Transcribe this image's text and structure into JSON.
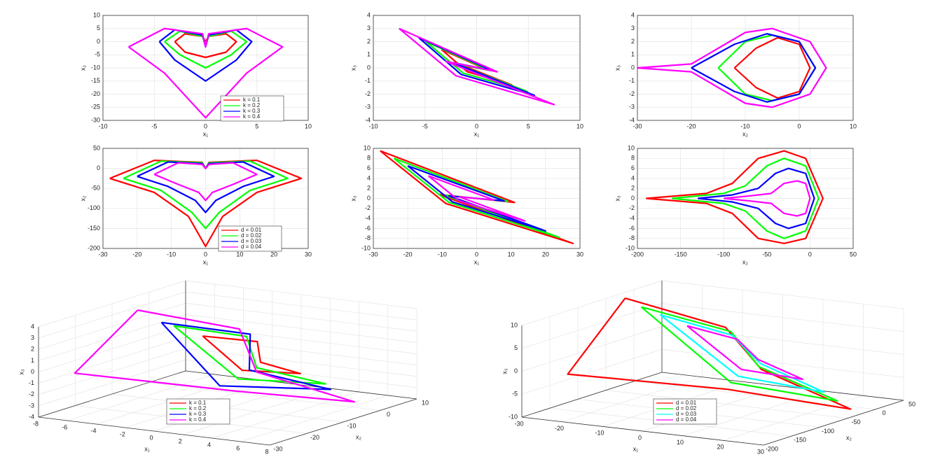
{
  "chart_data": [
    {
      "type": "line",
      "xlabel": "x₁",
      "ylabel": "x₂",
      "xlim": [
        -10,
        10
      ],
      "ylim": [
        -30,
        10
      ],
      "xticks": [
        -10,
        -5,
        0,
        5,
        10
      ],
      "yticks": [
        -30,
        -25,
        -20,
        -15,
        -10,
        -5,
        0,
        5,
        10
      ],
      "grid": true,
      "legend": "lower right",
      "series": [
        {
          "name": "k = 0.1",
          "color": "#ff0000",
          "x": [
            -3,
            -2,
            -0.3,
            0,
            0.3,
            2,
            3,
            2,
            0,
            -2,
            -3
          ],
          "values": [
            0,
            3,
            2,
            0,
            2,
            3,
            0,
            -4,
            -6,
            -4,
            0
          ]
        },
        {
          "name": "k = 0.2",
          "color": "#00ff00",
          "x": [
            -4,
            -2.5,
            -0.3,
            0,
            0.3,
            2.5,
            4,
            2.5,
            0,
            -2.5,
            -4
          ],
          "values": [
            0,
            4,
            2,
            -1,
            2,
            4,
            0,
            -5,
            -10,
            -5,
            0
          ]
        },
        {
          "name": "k = 0.3",
          "color": "#0000ff",
          "x": [
            -4.5,
            -3,
            -0.3,
            0,
            0.3,
            3,
            4.5,
            3,
            0,
            -3,
            -4.5
          ],
          "values": [
            0,
            4.5,
            2.5,
            -2,
            2.5,
            4.5,
            0,
            -7,
            -15,
            -7,
            0
          ]
        },
        {
          "name": "k = 0.4",
          "color": "#ff00ff",
          "x": [
            -7.5,
            -4,
            -0.3,
            0,
            0.3,
            4,
            7.5,
            4,
            0,
            -4,
            -7.5
          ],
          "values": [
            -2,
            5,
            3,
            -2,
            3,
            5,
            -2,
            -12,
            -29,
            -12,
            -2
          ]
        }
      ]
    },
    {
      "type": "line",
      "xlabel": "x₁",
      "ylabel": "x₃",
      "xlim": [
        -10,
        10
      ],
      "ylim": [
        -4,
        4
      ],
      "xticks": [
        -10,
        -5,
        0,
        5,
        10
      ],
      "yticks": [
        -4,
        -3,
        -2,
        -1,
        0,
        1,
        2,
        3,
        4
      ],
      "grid": true,
      "series": [
        {
          "color": "#ff0000",
          "x": [
            -3.4,
            0.9,
            -1.4,
            3.4,
            -0.9,
            -3.4
          ],
          "values": [
            1.4,
            -0.1,
            0.2,
            -1.3,
            -0.3,
            1.4
          ]
        },
        {
          "color": "#00ff00",
          "x": [
            -4.9,
            1.3,
            -2,
            4.9,
            -1.3,
            -4.9
          ],
          "values": [
            2,
            -0.2,
            0.3,
            -1.8,
            -0.4,
            2
          ]
        },
        {
          "color": "#0000ff",
          "x": [
            -5.6,
            1.5,
            -2.3,
            5.6,
            -1.5,
            -5.6
          ],
          "values": [
            2.3,
            -0.2,
            0.4,
            -2.1,
            -0.5,
            2.3
          ]
        },
        {
          "color": "#ff00ff",
          "x": [
            -7.5,
            2,
            -3,
            7.5,
            -2,
            -7.5
          ],
          "values": [
            3,
            -0.3,
            0.5,
            -2.8,
            -0.6,
            3
          ]
        }
      ]
    },
    {
      "type": "line",
      "xlabel": "x₂",
      "ylabel": "x₃",
      "xlim": [
        -30,
        10
      ],
      "ylim": [
        -4,
        4
      ],
      "xticks": [
        -30,
        -20,
        -10,
        0,
        10
      ],
      "yticks": [
        -4,
        -3,
        -2,
        -1,
        0,
        1,
        2,
        3,
        4
      ],
      "grid": true,
      "series": [
        {
          "color": "#ff0000",
          "x": [
            -12,
            -8,
            -4,
            0,
            2,
            0,
            -4,
            -8,
            -12
          ],
          "values": [
            0,
            1.5,
            2.3,
            1.8,
            0,
            -1.8,
            -2.3,
            -1.5,
            0
          ]
        },
        {
          "color": "#00ff00",
          "x": [
            -15,
            -10,
            -5,
            0,
            3,
            0,
            -5,
            -10,
            -15
          ],
          "values": [
            0,
            2,
            2.5,
            2,
            0,
            -2,
            -2.5,
            -2,
            0
          ]
        },
        {
          "color": "#0000ff",
          "x": [
            -20,
            -12,
            -6,
            0,
            3,
            0,
            -6,
            -12,
            -20
          ],
          "values": [
            0,
            1.8,
            2.6,
            2,
            0,
            -2,
            -2.6,
            -1.8,
            0
          ]
        },
        {
          "color": "#ff00ff",
          "x": [
            -30,
            -20,
            -15,
            -10,
            -5,
            2,
            5,
            2,
            -5,
            -10,
            -15,
            -20,
            -30
          ],
          "values": [
            0,
            0.3,
            1.5,
            2.7,
            3,
            2,
            0,
            -2,
            -3,
            -2.7,
            -1.5,
            -0.3,
            0
          ]
        }
      ]
    },
    {
      "type": "line",
      "xlabel": "x₁",
      "ylabel": "x₂",
      "xlim": [
        -30,
        30
      ],
      "ylim": [
        -200,
        50
      ],
      "xticks": [
        -30,
        -20,
        -10,
        0,
        10,
        20,
        30
      ],
      "yticks": [
        -200,
        -150,
        -100,
        -50,
        0,
        50
      ],
      "grid": true,
      "legend": "lower right",
      "series": [
        {
          "name": "d = 0.01",
          "color": "#ff0000",
          "x": [
            -28,
            -15,
            -1,
            0,
            1,
            15,
            28,
            15,
            5,
            0,
            -5,
            -15,
            -28
          ],
          "values": [
            -25,
            20,
            15,
            0,
            15,
            20,
            -25,
            -60,
            -120,
            -195,
            -120,
            -60,
            -25
          ]
        },
        {
          "name": "d = 0.02",
          "color": "#00ff00",
          "x": [
            -24,
            -13,
            -1,
            0,
            1,
            13,
            24,
            13,
            4,
            0,
            -4,
            -13,
            -24
          ],
          "values": [
            -25,
            18,
            14,
            0,
            14,
            18,
            -25,
            -55,
            -110,
            -150,
            -110,
            -55,
            -25
          ]
        },
        {
          "name": "d = 0.03",
          "color": "#0000ff",
          "x": [
            -20,
            -11,
            -1,
            0,
            1,
            11,
            20,
            11,
            3,
            0,
            -3,
            -11,
            -20
          ],
          "values": [
            -20,
            16,
            12,
            0,
            12,
            16,
            -20,
            -45,
            -80,
            -110,
            -80,
            -45,
            -20
          ]
        },
        {
          "name": "d = 0.04",
          "color": "#ff00ff",
          "x": [
            -15,
            -8,
            -1,
            0,
            1,
            8,
            15,
            8,
            2,
            0,
            -2,
            -8,
            -15
          ],
          "values": [
            -15,
            14,
            10,
            0,
            10,
            14,
            -15,
            -40,
            -60,
            -80,
            -60,
            -40,
            -15
          ]
        }
      ]
    },
    {
      "type": "line",
      "xlabel": "x₁",
      "ylabel": "x₃",
      "xlim": [
        -30,
        30
      ],
      "ylim": [
        -10,
        10
      ],
      "xticks": [
        -30,
        -20,
        -10,
        0,
        10,
        20,
        30
      ],
      "yticks": [
        -10,
        -8,
        -6,
        -4,
        -2,
        0,
        2,
        4,
        6,
        8,
        10
      ],
      "grid": true,
      "series": [
        {
          "color": "#ff0000",
          "x": [
            -28,
            11,
            -11,
            28,
            -9,
            -28
          ],
          "values": [
            9.5,
            -0.8,
            0.8,
            -9,
            -1,
            9.5
          ]
        },
        {
          "color": "#00ff00",
          "x": [
            -24,
            9,
            -9,
            24,
            -8,
            -24
          ],
          "values": [
            8,
            -0.6,
            0.6,
            -7.8,
            -0.8,
            8
          ]
        },
        {
          "color": "#0000ff",
          "x": [
            -20,
            8,
            -8,
            20,
            -7,
            -20
          ],
          "values": [
            6.5,
            -0.5,
            0.5,
            -6.5,
            -0.7,
            6.5
          ]
        },
        {
          "color": "#ff00ff",
          "x": [
            -14,
            5,
            -5,
            14,
            -5,
            -14
          ],
          "values": [
            4.5,
            -0.3,
            0.3,
            -4.5,
            -0.5,
            4.5
          ]
        }
      ]
    },
    {
      "type": "line",
      "xlabel": "x₂",
      "ylabel": "x₃",
      "xlim": [
        -200,
        50
      ],
      "ylim": [
        -10,
        10
      ],
      "xticks": [
        -200,
        -150,
        -100,
        -50,
        0,
        50
      ],
      "yticks": [
        -10,
        -8,
        -6,
        -4,
        -2,
        0,
        2,
        4,
        6,
        8,
        10
      ],
      "grid": true,
      "series": [
        {
          "color": "#ff0000",
          "x": [
            -190,
            -120,
            -90,
            -60,
            -30,
            -5,
            15,
            -5,
            -30,
            -60,
            -90,
            -120,
            -190
          ],
          "values": [
            0,
            1,
            3,
            8,
            9.5,
            8,
            0,
            -8,
            -9,
            -8,
            -3,
            -1,
            0
          ]
        },
        {
          "color": "#00ff00",
          "x": [
            -160,
            -100,
            -75,
            -50,
            -30,
            -5,
            10,
            -5,
            -30,
            -50,
            -75,
            -100,
            -160
          ],
          "values": [
            0,
            1,
            2.5,
            6.5,
            8,
            6.5,
            0,
            -6.5,
            -8,
            -6.5,
            -2.5,
            -1,
            0
          ]
        },
        {
          "color": "#0000ff",
          "x": [
            -130,
            -90,
            -60,
            -40,
            -25,
            -5,
            5,
            -5,
            -25,
            -40,
            -60,
            -90,
            -130
          ],
          "values": [
            0,
            0.7,
            2,
            5,
            6,
            5,
            0,
            -5,
            -6,
            -5,
            -2,
            -0.7,
            0
          ]
        },
        {
          "color": "#ff00ff",
          "x": [
            -100,
            -70,
            -45,
            -30,
            -15,
            -5,
            0,
            -5,
            -15,
            -30,
            -45,
            -70,
            -100
          ],
          "values": [
            0,
            0.5,
            1,
            3,
            3.5,
            3,
            0,
            -3,
            -3.5,
            -3,
            -1,
            -0.5,
            0
          ]
        }
      ]
    },
    {
      "type": "line3d",
      "xlabel": "x₁",
      "ylabel": "x₂",
      "zlabel": "x₃",
      "xlim": [
        -8,
        8
      ],
      "ylim": [
        -30,
        10
      ],
      "zlim": [
        -4,
        4
      ],
      "xticks": [
        -8,
        -6,
        -4,
        -2,
        0,
        2,
        4,
        6,
        8
      ],
      "yticks": [
        -30,
        -20,
        -10,
        0,
        10
      ],
      "zticks": [
        -4,
        -3,
        -2,
        -1,
        0,
        1,
        2,
        3,
        4
      ],
      "grid": true,
      "legend": "lower center",
      "series": [
        {
          "name": "k = 0.1",
          "color": "#ff0000",
          "x": [
            -3,
            -1,
            1,
            3,
            1,
            -3
          ],
          "y": [
            -5,
            2,
            -5,
            -2,
            -10,
            -5
          ],
          "values": [
            1.4,
            0.5,
            -0.3,
            -1.3,
            -0.5,
            1.4
          ]
        },
        {
          "name": "k = 0.2",
          "color": "#00ff00",
          "x": [
            -5,
            -2,
            1.5,
            5,
            2,
            -5
          ],
          "y": [
            -5,
            3,
            -8,
            -3,
            -15,
            -5
          ],
          "values": [
            2,
            0.7,
            -0.4,
            -1.8,
            -0.6,
            2
          ]
        },
        {
          "name": "k = 0.3",
          "color": "#0000ff",
          "x": [
            -5.6,
            -2,
            1.5,
            5.6,
            2,
            -5.6
          ],
          "y": [
            -6,
            4,
            -10,
            -4,
            -20,
            -6
          ],
          "values": [
            2.3,
            0.8,
            -0.4,
            -2.1,
            -0.7,
            2.3
          ]
        },
        {
          "name": "k = 0.4",
          "color": "#ff00ff",
          "x": [
            -7.5,
            -3,
            2,
            7.5,
            3,
            -6,
            -7.5
          ],
          "y": [
            -5,
            5,
            -10,
            -5,
            -20,
            -28,
            -5
          ],
          "values": [
            3,
            1,
            -0.5,
            -2.8,
            -1,
            0,
            3
          ]
        }
      ]
    },
    {
      "type": "line3d",
      "xlabel": "x₁",
      "ylabel": "x₂",
      "zlabel": "x₃",
      "xlim": [
        -30,
        30
      ],
      "ylim": [
        -200,
        50
      ],
      "zlim": [
        -10,
        10
      ],
      "xticks": [
        -30,
        -20,
        -10,
        0,
        10,
        20,
        30
      ],
      "yticks": [
        -200,
        -150,
        -100,
        -50,
        0,
        50
      ],
      "zticks": [
        -10,
        -5,
        0,
        5,
        10
      ],
      "grid": true,
      "legend": "lower center",
      "series": [
        {
          "name": "d = 0.01",
          "color": "#ff0000",
          "x": [
            -28,
            -10,
            10,
            28,
            10,
            -20,
            -28
          ],
          "y": [
            -30,
            20,
            -60,
            -30,
            -120,
            -190,
            -30
          ],
          "values": [
            9.5,
            3,
            -1,
            -9,
            -3,
            0,
            9.5
          ]
        },
        {
          "name": "d = 0.02",
          "color": "#00ff00",
          "x": [
            -24,
            -8,
            8,
            24,
            8,
            -24
          ],
          "y": [
            -30,
            15,
            -50,
            -25,
            -100,
            -30
          ],
          "values": [
            8,
            2.5,
            -1,
            -7.8,
            -2.5,
            8
          ]
        },
        {
          "name": "d = 0.03",
          "color": "#00ffff",
          "x": [
            -20,
            -7,
            7,
            20,
            7,
            -20
          ],
          "y": [
            -25,
            10,
            -40,
            -20,
            -80,
            -25
          ],
          "values": [
            6.5,
            2,
            -0.8,
            -6.5,
            -2,
            6.5
          ]
        },
        {
          "name": "d = 0.04",
          "color": "#ff00ff",
          "x": [
            -14,
            -5,
            5,
            14,
            5,
            -14
          ],
          "y": [
            -20,
            5,
            -30,
            -15,
            -60,
            -20
          ],
          "values": [
            4.5,
            1.5,
            -0.5,
            -4.5,
            -1.5,
            4.5
          ]
        }
      ]
    }
  ]
}
